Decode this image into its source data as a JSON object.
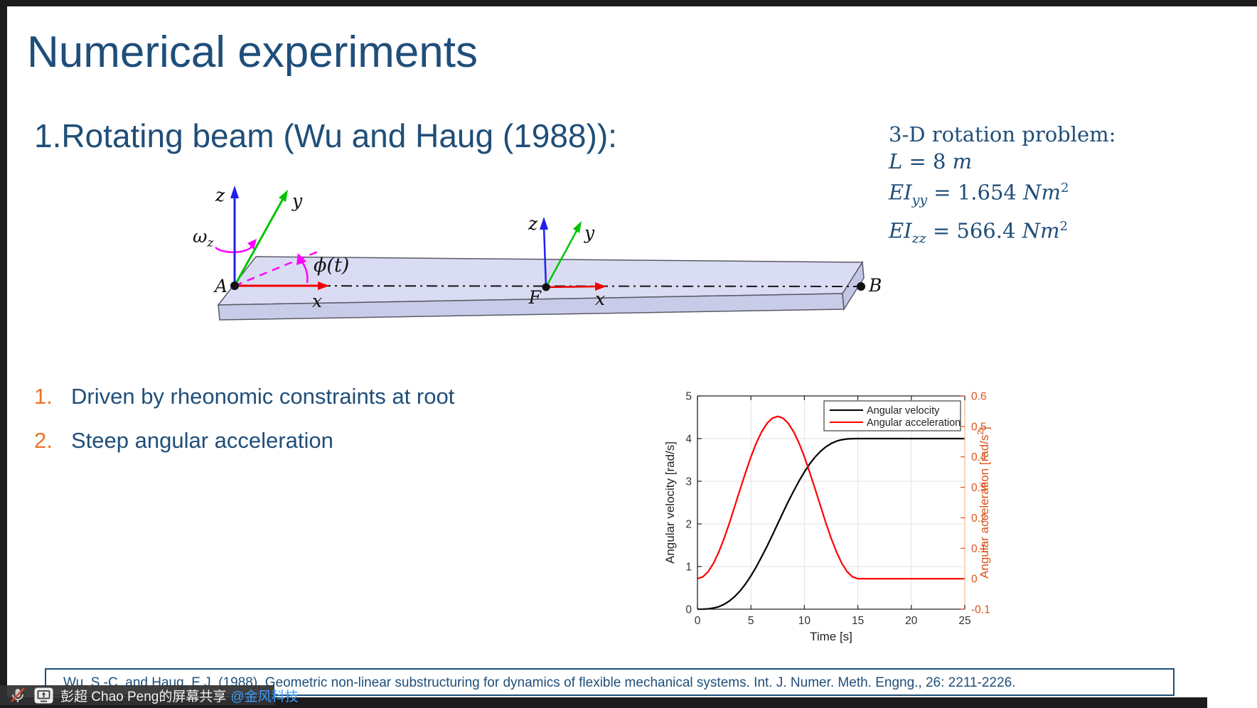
{
  "slide": {
    "title": "Numerical experiments",
    "heading": "1.Rotating beam (Wu and Haug (1988)):",
    "problem": {
      "title_line": "3-D rotation problem:",
      "eq1": {
        "var": "L",
        "mid": " = 8 ",
        "unit": "m",
        "sub": "",
        "sup": ""
      },
      "eq2": {
        "var": "EI",
        "sub": "yy",
        "mid": " = 1.654 ",
        "unit": "Nm",
        "sup": "2"
      },
      "eq3": {
        "var": "EI",
        "sub": "zz",
        "mid": " = 566.4 ",
        "unit": "Nm",
        "sup": "2"
      }
    },
    "bullets": [
      {
        "num": "1.",
        "text": "Driven by rheonomic constraints at root"
      },
      {
        "num": "2.",
        "text": "Steep angular acceleration"
      }
    ],
    "reference": "Wu, S.-C. and Haug, E.J. (1988), Geometric non-linear substructuring for dynamics of flexible mechanical systems. Int. J. Numer. Meth. Engng., 26: 2211-2226.",
    "accent_orange": "#ee7322",
    "accent_blue": "#1f4e79"
  },
  "diagram": {
    "labels": {
      "A": "A",
      "B": "B",
      "F": "F",
      "x1": "x",
      "x2": "x",
      "y1": "y",
      "y2": "y",
      "z1": "z",
      "z2": "z",
      "omega": "ω",
      "omega_sub": "z",
      "phi": "ϕ(t)"
    },
    "colors": {
      "x_axis": "#f00000",
      "y_axis": "#00c400",
      "z_axis": "#2020ee",
      "rotation": "#ff00ff",
      "beam_top": "#dadcf4",
      "beam_front": "#c9cce9",
      "beam_end": "#c3c7e5",
      "centerline": "#141414"
    }
  },
  "chart_data": {
    "type": "line",
    "xlabel": "Time [s]",
    "ylabel_left": "Angular velocity [rad/s]",
    "ylabel_right": {
      "pre": "Angular acceleration [rad/s",
      "sup": "2",
      "post": "]"
    },
    "xlim": [
      0,
      25
    ],
    "ylim_left": [
      0,
      5
    ],
    "ylim_right": [
      -0.1,
      0.6
    ],
    "x_ticks": [
      0,
      5,
      10,
      15,
      20,
      25
    ],
    "y_ticks_left": [
      0,
      1,
      2,
      3,
      4,
      5
    ],
    "y_ticks_right": [
      -0.1,
      0,
      0.1,
      0.2,
      0.3,
      0.4,
      0.5,
      0.6
    ],
    "grid": true,
    "legend_position": "top-right",
    "right_axis_color": "#d95319",
    "legend": [
      {
        "label": "Angular velocity",
        "color": "#000000"
      },
      {
        "label": "Angular acceleration",
        "color": "#ff0000"
      }
    ],
    "x": [
      0,
      0.5,
      1,
      1.5,
      2,
      2.5,
      3,
      3.5,
      4,
      4.5,
      5,
      5.5,
      6,
      6.5,
      7,
      7.5,
      8,
      8.5,
      9,
      9.5,
      10,
      10.5,
      11,
      11.5,
      12,
      12.5,
      13,
      13.5,
      14,
      14.5,
      15,
      15.5,
      16,
      16.5,
      17,
      17.5,
      18,
      18.5,
      19,
      19.5,
      20,
      20.5,
      21,
      21.5,
      22,
      22.5,
      23,
      23.5,
      24,
      24.5,
      25
    ],
    "series": [
      {
        "name": "Angular velocity",
        "axis": "left",
        "color": "#000000",
        "values": [
          0,
          0.001,
          0.008,
          0.026,
          0.06,
          0.115,
          0.195,
          0.3,
          0.434,
          0.595,
          0.782,
          0.994,
          1.226,
          1.474,
          1.734,
          2,
          2.266,
          2.526,
          2.774,
          3.006,
          3.218,
          3.406,
          3.567,
          3.7,
          3.805,
          3.885,
          3.94,
          3.974,
          3.992,
          3.999,
          4,
          4,
          4,
          4,
          4,
          4,
          4,
          4,
          4,
          4,
          4,
          4,
          4,
          4,
          4,
          4,
          4,
          4,
          4,
          4,
          4
        ]
      },
      {
        "name": "Angular acceleration",
        "axis": "right",
        "color": "#ff0000",
        "values": [
          0,
          0.006,
          0.023,
          0.051,
          0.088,
          0.133,
          0.184,
          0.239,
          0.295,
          0.349,
          0.4,
          0.445,
          0.482,
          0.51,
          0.527,
          0.533,
          0.527,
          0.51,
          0.482,
          0.445,
          0.4,
          0.349,
          0.295,
          0.239,
          0.184,
          0.133,
          0.088,
          0.051,
          0.023,
          0.006,
          0,
          0,
          0,
          0,
          0,
          0,
          0,
          0,
          0,
          0,
          0,
          0,
          0,
          0,
          0,
          0,
          0,
          0,
          0,
          0,
          0
        ]
      }
    ]
  },
  "overlay": {
    "mic_icon": "mic-muted-icon",
    "share_icon": "screen-share-icon",
    "text": "彭超 Chao Peng的屏幕共享",
    "link_text": "@金风科技"
  }
}
